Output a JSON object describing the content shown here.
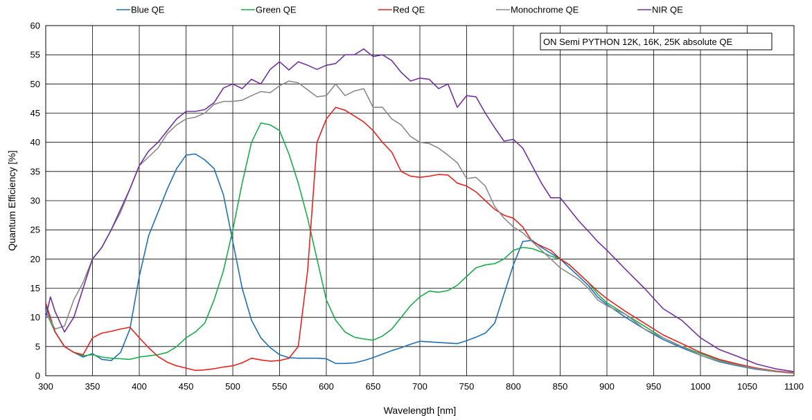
{
  "chart_data": {
    "type": "line",
    "title": "",
    "xlabel": "Wavelength [nm]",
    "ylabel": "Quantum Efficiency [%]",
    "xlim": [
      300,
      1100
    ],
    "ylim": [
      0,
      60
    ],
    "xticks": [
      300,
      350,
      400,
      450,
      500,
      550,
      600,
      650,
      700,
      750,
      800,
      850,
      900,
      950,
      1000,
      1050,
      1100
    ],
    "yticks": [
      0,
      5,
      10,
      15,
      20,
      25,
      30,
      35,
      40,
      45,
      50,
      55,
      60
    ],
    "grid": true,
    "legend_position": "top",
    "annotation": "ON Semi PYTHON 12K, 16K, 25K absolute QE",
    "series": [
      {
        "name": "Blue QE",
        "color": "#1f6fb5",
        "x": [
          300,
          310,
          320,
          330,
          340,
          350,
          360,
          370,
          380,
          390,
          400,
          410,
          420,
          430,
          440,
          450,
          460,
          470,
          480,
          490,
          500,
          510,
          520,
          530,
          540,
          550,
          560,
          570,
          580,
          590,
          600,
          610,
          620,
          630,
          640,
          650,
          660,
          670,
          680,
          690,
          700,
          710,
          720,
          730,
          740,
          750,
          760,
          770,
          780,
          790,
          800,
          810,
          820,
          830,
          840,
          850,
          860,
          870,
          880,
          890,
          900,
          920,
          940,
          960,
          980,
          1000,
          1020,
          1040,
          1060,
          1080,
          1100
        ],
        "y": [
          12,
          7.5,
          5,
          4,
          3.2,
          3.8,
          2.8,
          2.6,
          4,
          8,
          17,
          24,
          28,
          32,
          35.5,
          37.8,
          38,
          37,
          35.5,
          31,
          23,
          15,
          9.5,
          6.5,
          4.8,
          3.6,
          3.1,
          3,
          3,
          3,
          2.9,
          2.1,
          2.1,
          2.2,
          2.6,
          3.1,
          3.7,
          4.3,
          4.8,
          5.4,
          5.9,
          5.8,
          5.7,
          5.6,
          5.5,
          6,
          6.6,
          7.3,
          9,
          14,
          19,
          23,
          23.2,
          22,
          21,
          20,
          18.5,
          17,
          15.5,
          13.5,
          12.2,
          10,
          8,
          6.2,
          4.8,
          3.5,
          2.4,
          1.7,
          1.1,
          0.7,
          0.5
        ]
      },
      {
        "name": "Green QE",
        "color": "#1aab4b",
        "x": [
          300,
          310,
          320,
          330,
          340,
          350,
          360,
          370,
          380,
          390,
          400,
          410,
          420,
          430,
          440,
          450,
          460,
          470,
          480,
          490,
          500,
          510,
          520,
          530,
          540,
          550,
          560,
          570,
          580,
          590,
          600,
          610,
          620,
          630,
          640,
          650,
          660,
          670,
          680,
          690,
          700,
          710,
          720,
          730,
          740,
          750,
          760,
          770,
          780,
          790,
          800,
          810,
          820,
          830,
          840,
          850,
          860,
          870,
          880,
          890,
          900,
          920,
          940,
          960,
          980,
          1000,
          1020,
          1040,
          1060,
          1080,
          1100
        ],
        "y": [
          11,
          7.5,
          5,
          4,
          3.4,
          3.6,
          3.2,
          3,
          2.9,
          2.8,
          3.2,
          3.4,
          3.6,
          4,
          5,
          6.5,
          7.5,
          9,
          13,
          18,
          25,
          33,
          40,
          43.3,
          43,
          42,
          38,
          33,
          27,
          20,
          13,
          9.5,
          7.5,
          6.6,
          6.3,
          6.1,
          6.8,
          8,
          10,
          12,
          13.5,
          14.5,
          14.3,
          14.6,
          15.5,
          17,
          18.5,
          19,
          19.2,
          20,
          21.5,
          22,
          21.8,
          21.2,
          20.5,
          20,
          19,
          17.5,
          16,
          14,
          12.5,
          10.5,
          8.5,
          6.5,
          5,
          3.8,
          2.7,
          1.9,
          1.3,
          0.8,
          0.5
        ]
      },
      {
        "name": "Red QE",
        "color": "#e8231f",
        "x": [
          300,
          310,
          320,
          330,
          340,
          350,
          360,
          370,
          380,
          390,
          400,
          410,
          420,
          430,
          440,
          450,
          460,
          470,
          480,
          490,
          500,
          510,
          520,
          530,
          540,
          550,
          560,
          570,
          580,
          590,
          600,
          610,
          620,
          630,
          640,
          650,
          660,
          670,
          680,
          690,
          700,
          710,
          720,
          730,
          740,
          750,
          760,
          770,
          780,
          790,
          800,
          810,
          820,
          830,
          840,
          850,
          860,
          870,
          880,
          890,
          900,
          920,
          940,
          960,
          980,
          1000,
          1020,
          1040,
          1060,
          1080,
          1100
        ],
        "y": [
          12.5,
          7.5,
          5,
          4,
          3.6,
          6.5,
          7.3,
          7.6,
          8,
          8.3,
          6.5,
          4.8,
          3.3,
          2.3,
          1.7,
          1.3,
          0.9,
          1,
          1.2,
          1.5,
          1.7,
          2.2,
          3,
          2.7,
          2.5,
          2.6,
          3,
          5,
          18,
          40,
          44,
          46,
          45.5,
          44.5,
          43.5,
          42,
          40,
          38.3,
          35,
          34.2,
          34,
          34.2,
          34.5,
          34.4,
          33,
          32.5,
          31.5,
          30,
          28.5,
          27.5,
          27,
          25.5,
          23,
          22.2,
          21.5,
          20,
          19,
          17.5,
          16,
          14.5,
          13.2,
          11,
          9,
          7,
          5.5,
          4,
          2.8,
          2,
          1.3,
          0.8,
          0.5
        ]
      },
      {
        "name": "Monochrome QE",
        "color": "#8a8a8a",
        "x": [
          300,
          310,
          320,
          330,
          340,
          350,
          360,
          370,
          380,
          390,
          400,
          410,
          420,
          430,
          440,
          450,
          460,
          470,
          480,
          490,
          500,
          510,
          520,
          530,
          540,
          550,
          560,
          570,
          580,
          590,
          600,
          610,
          620,
          630,
          640,
          650,
          660,
          670,
          680,
          690,
          700,
          710,
          720,
          730,
          740,
          750,
          760,
          770,
          780,
          790,
          800,
          810,
          820,
          830,
          840,
          850,
          860,
          870,
          880,
          890,
          900,
          920,
          940,
          960,
          980,
          1000,
          1020,
          1040,
          1060,
          1080,
          1100
        ],
        "y": [
          11,
          8,
          8.5,
          13,
          16,
          20,
          22,
          25,
          28,
          32,
          36,
          37.5,
          39,
          41.5,
          43,
          44,
          44.3,
          45,
          46.5,
          47,
          47,
          47.2,
          48,
          48.7,
          48.5,
          49.7,
          50.5,
          50.2,
          49,
          47.8,
          48,
          50,
          48,
          48.8,
          49.2,
          46,
          46,
          44,
          43,
          41,
          40,
          39.8,
          39,
          37.8,
          36.5,
          33.8,
          34,
          32.5,
          29,
          27,
          25.5,
          24.5,
          23,
          21.5,
          20,
          18.5,
          17.5,
          16.5,
          15,
          13,
          12,
          10.5,
          8,
          6.5,
          5,
          3.5,
          2.5,
          1.8,
          1.2,
          0.7,
          0.4
        ]
      },
      {
        "name": "NIR QE",
        "color": "#7030a0",
        "x": [
          300,
          305,
          310,
          320,
          330,
          340,
          350,
          360,
          370,
          380,
          390,
          400,
          410,
          420,
          430,
          440,
          450,
          460,
          470,
          480,
          490,
          500,
          510,
          520,
          530,
          540,
          550,
          560,
          570,
          580,
          590,
          600,
          610,
          620,
          630,
          640,
          650,
          660,
          670,
          680,
          690,
          700,
          710,
          720,
          730,
          740,
          750,
          760,
          770,
          780,
          790,
          800,
          810,
          820,
          830,
          840,
          850,
          860,
          870,
          880,
          890,
          900,
          920,
          940,
          960,
          980,
          1000,
          1020,
          1040,
          1060,
          1080,
          1100
        ],
        "y": [
          10,
          13.5,
          11,
          7.5,
          10,
          15,
          20,
          22,
          25,
          28.5,
          32,
          36,
          38.5,
          40,
          42,
          44,
          45.3,
          45.3,
          45.6,
          46.8,
          49.3,
          50,
          49.2,
          50.8,
          50,
          52.5,
          53.8,
          52.4,
          53.8,
          53.2,
          52.5,
          53.2,
          53.5,
          55,
          55,
          56,
          54.7,
          55,
          54,
          52,
          50.5,
          51,
          50.8,
          49.2,
          50,
          46,
          48,
          47.8,
          45,
          42.5,
          40.2,
          40.5,
          39,
          36,
          33,
          30.5,
          30.5,
          28.5,
          26.5,
          24.8,
          23,
          21.5,
          18.2,
          15,
          11.5,
          9.5,
          6.5,
          4.5,
          3.3,
          2,
          1.2,
          0.7
        ]
      }
    ]
  }
}
